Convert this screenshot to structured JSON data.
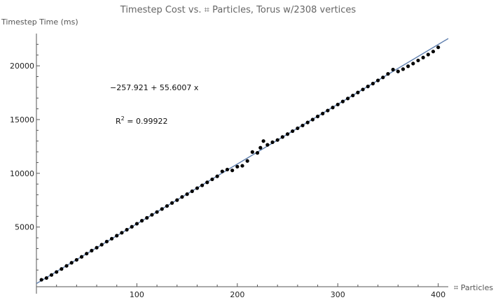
{
  "chart_data": {
    "type": "scatter",
    "title": "Timestep Cost vs. ⌗ Particles, Torus w/2308 vertices",
    "xlabel": "⌗ Particles",
    "ylabel": "Timestep Time (ms)",
    "xlim": [
      0,
      410
    ],
    "ylim": [
      -1200,
      23000
    ],
    "x_ticks": [
      100,
      200,
      300,
      400
    ],
    "y_ticks": [
      5000,
      10000,
      15000,
      20000
    ],
    "grid": false,
    "annotations": {
      "fit_equation": "−257.921 + 55.6007 x",
      "r2_label": "R",
      "r2_sup": "2",
      "r2_value": " = 0.99922"
    },
    "fit": {
      "intercept": -257.921,
      "slope": 55.6007,
      "x_range": [
        0,
        410
      ],
      "color": "#5f7fae"
    },
    "point_color": "#000000",
    "points": [
      [
        5,
        98
      ],
      [
        10,
        260
      ],
      [
        15,
        545
      ],
      [
        20,
        820
      ],
      [
        25,
        1100
      ],
      [
        30,
        1390
      ],
      [
        35,
        1680
      ],
      [
        40,
        1950
      ],
      [
        45,
        2230
      ],
      [
        50,
        2530
      ],
      [
        55,
        2810
      ],
      [
        60,
        3080
      ],
      [
        65,
        3360
      ],
      [
        70,
        3650
      ],
      [
        75,
        3920
      ],
      [
        80,
        4200
      ],
      [
        85,
        4470
      ],
      [
        90,
        4750
      ],
      [
        95,
        5030
      ],
      [
        100,
        5310
      ],
      [
        105,
        5590
      ],
      [
        110,
        5860
      ],
      [
        115,
        6140
      ],
      [
        120,
        6400
      ],
      [
        125,
        6680
      ],
      [
        130,
        6960
      ],
      [
        135,
        7240
      ],
      [
        140,
        7510
      ],
      [
        145,
        7800
      ],
      [
        150,
        8060
      ],
      [
        155,
        8330
      ],
      [
        160,
        8620
      ],
      [
        165,
        8880
      ],
      [
        170,
        9160
      ],
      [
        175,
        9440
      ],
      [
        180,
        9720
      ],
      [
        185,
        10180
      ],
      [
        190,
        10350
      ],
      [
        195,
        10270
      ],
      [
        200,
        10620
      ],
      [
        205,
        10700
      ],
      [
        210,
        11150
      ],
      [
        215,
        11980
      ],
      [
        220,
        11900
      ],
      [
        223,
        12380
      ],
      [
        226,
        13000
      ],
      [
        230,
        12650
      ],
      [
        235,
        12890
      ],
      [
        240,
        13100
      ],
      [
        245,
        13380
      ],
      [
        250,
        13650
      ],
      [
        255,
        13920
      ],
      [
        260,
        14190
      ],
      [
        265,
        14450
      ],
      [
        270,
        14730
      ],
      [
        275,
        15000
      ],
      [
        280,
        15290
      ],
      [
        285,
        15560
      ],
      [
        290,
        15840
      ],
      [
        295,
        16120
      ],
      [
        300,
        16400
      ],
      [
        305,
        16680
      ],
      [
        310,
        16960
      ],
      [
        315,
        17240
      ],
      [
        320,
        17520
      ],
      [
        325,
        17800
      ],
      [
        330,
        18080
      ],
      [
        335,
        18350
      ],
      [
        340,
        18640
      ],
      [
        345,
        18920
      ],
      [
        350,
        19250
      ],
      [
        355,
        19650
      ],
      [
        360,
        19480
      ],
      [
        365,
        19690
      ],
      [
        370,
        19960
      ],
      [
        375,
        20210
      ],
      [
        380,
        20500
      ],
      [
        385,
        20770
      ],
      [
        390,
        21050
      ],
      [
        395,
        21330
      ],
      [
        400,
        21720
      ]
    ]
  }
}
